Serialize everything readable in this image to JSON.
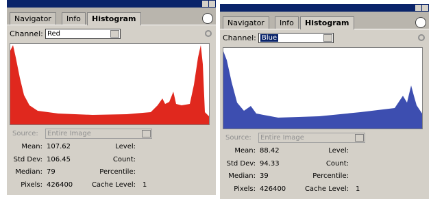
{
  "panels": [
    {
      "tabs": [
        "Navigator",
        "Info",
        "Histogram"
      ],
      "channel_label": "Channel:",
      "channel": "Red",
      "source_label": "Source:",
      "source": "Entire Image",
      "stats_left": [
        {
          "label": "Mean:",
          "value": 107.62
        },
        {
          "label": "Std Dev:",
          "value": 106.45
        },
        {
          "label": "Median:",
          "value": 79
        },
        {
          "label": "Pixels:",
          "value": 426400
        }
      ],
      "stats_right": [
        {
          "label": "Level:"
        },
        {
          "label": "Count:"
        },
        {
          "label": "Percentile:"
        },
        {
          "label": "Cache Level:",
          "value": 1
        }
      ]
    },
    {
      "tabs": [
        "Navigator",
        "Info",
        "Histogram"
      ],
      "channel_label": "Channel:",
      "channel": "Blue",
      "source_label": "Source:",
      "source": "Entire Image",
      "stats_left": [
        {
          "label": "Mean:",
          "value": 88.42
        },
        {
          "label": "Std Dev:",
          "value": 94.33
        },
        {
          "label": "Median:",
          "value": 39
        },
        {
          "label": "Pixels:",
          "value": 426400
        }
      ],
      "stats_right": [
        {
          "label": "Level:"
        },
        {
          "label": "Count:"
        },
        {
          "label": "Percentile:"
        },
        {
          "label": "Cache Level:",
          "value": 1
        }
      ]
    }
  ]
}
